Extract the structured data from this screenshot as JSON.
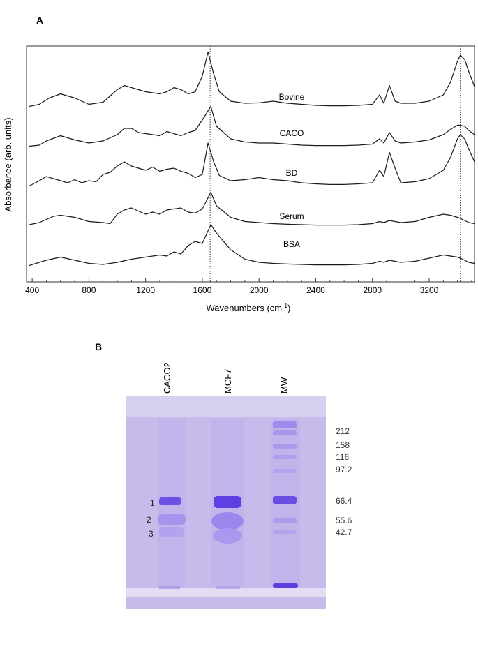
{
  "panel_a": {
    "label": "A",
    "xlabel_main": "Wavenumbers (cm",
    "xlabel_sup": "-1",
    "xlabel_close": ")",
    "ylabel": "Absorbance (arb. units)"
  },
  "panel_b": {
    "label": "B",
    "lanes": [
      "CACO2",
      "MCF7",
      "MW"
    ],
    "band_labels": [
      "1",
      "2",
      "3"
    ],
    "mw_markers": [
      "212",
      "158",
      "116",
      "97.2",
      "66.4",
      "55.6",
      "42.7"
    ]
  },
  "chart_data": [
    {
      "type": "line",
      "title": "",
      "xlabel": "Wavenumbers (cm-1)",
      "ylabel": "Absorbance (arb. units)",
      "xlim": [
        360,
        3520
      ],
      "xticks": [
        400,
        800,
        1200,
        1600,
        2000,
        2400,
        2800,
        3200
      ],
      "reference_lines_x": [
        1655,
        3420
      ],
      "grid": false,
      "series": [
        {
          "name": "Bovine",
          "offset": 4.0,
          "x": [
            380,
            450,
            520,
            600,
            700,
            800,
            900,
            1000,
            1050,
            1100,
            1200,
            1300,
            1350,
            1400,
            1450,
            1500,
            1550,
            1600,
            1640,
            1680,
            1720,
            1800,
            1900,
            2000,
            2100,
            2200,
            2300,
            2400,
            2500,
            2600,
            2700,
            2800,
            2850,
            2880,
            2920,
            2960,
            3000,
            3100,
            3200,
            3300,
            3350,
            3400,
            3420,
            3450,
            3480,
            3520
          ],
          "y": [
            0.05,
            0.15,
            0.45,
            0.65,
            0.45,
            0.15,
            0.25,
            0.85,
            1.05,
            0.95,
            0.75,
            0.65,
            0.75,
            0.95,
            0.85,
            0.65,
            0.75,
            1.5,
            2.65,
            1.6,
            0.75,
            0.3,
            0.2,
            0.22,
            0.3,
            0.2,
            0.15,
            0.1,
            0.08,
            0.08,
            0.1,
            0.15,
            0.6,
            0.2,
            1.05,
            0.3,
            0.2,
            0.2,
            0.3,
            0.6,
            1.2,
            2.2,
            2.5,
            2.3,
            1.7,
            1.0
          ]
        },
        {
          "name": "CACO",
          "offset": 3.0,
          "x": [
            380,
            450,
            500,
            600,
            700,
            800,
            900,
            1000,
            1050,
            1100,
            1150,
            1200,
            1300,
            1350,
            1400,
            1450,
            1500,
            1550,
            1600,
            1660,
            1700,
            1800,
            1900,
            2000,
            2100,
            2200,
            2300,
            2400,
            2500,
            2600,
            2700,
            2800,
            2850,
            2880,
            2920,
            2960,
            3000,
            3100,
            3200,
            3300,
            3350,
            3400,
            3420,
            3450,
            3480,
            3520
          ],
          "y": [
            0.05,
            0.1,
            0.3,
            0.55,
            0.35,
            0.2,
            0.3,
            0.6,
            0.9,
            0.9,
            0.7,
            0.65,
            0.55,
            0.75,
            0.65,
            0.55,
            0.7,
            0.8,
            1.3,
            1.95,
            1.0,
            0.4,
            0.25,
            0.2,
            0.2,
            0.15,
            0.1,
            0.08,
            0.08,
            0.08,
            0.1,
            0.15,
            0.4,
            0.2,
            0.7,
            0.3,
            0.2,
            0.25,
            0.35,
            0.6,
            0.85,
            1.05,
            1.05,
            1.0,
            0.8,
            0.6
          ]
        },
        {
          "name": "BD",
          "offset": 2.0,
          "x": [
            380,
            450,
            500,
            550,
            600,
            650,
            700,
            750,
            800,
            850,
            900,
            950,
            1000,
            1050,
            1100,
            1150,
            1200,
            1250,
            1300,
            1350,
            1400,
            1450,
            1500,
            1550,
            1600,
            1640,
            1680,
            1720,
            1800,
            1900,
            2000,
            2100,
            2200,
            2300,
            2400,
            2500,
            2600,
            2700,
            2800,
            2850,
            2880,
            2920,
            2960,
            3000,
            3100,
            3200,
            3300,
            3350,
            3400,
            3420,
            3450,
            3480,
            3520
          ],
          "y": [
            0.05,
            0.3,
            0.5,
            0.4,
            0.3,
            0.2,
            0.35,
            0.2,
            0.3,
            0.25,
            0.6,
            0.7,
            1.0,
            1.2,
            1.0,
            0.9,
            0.8,
            0.95,
            0.75,
            0.85,
            0.9,
            0.75,
            0.65,
            0.45,
            0.6,
            2.1,
            1.2,
            0.55,
            0.3,
            0.35,
            0.45,
            0.35,
            0.3,
            0.2,
            0.15,
            0.12,
            0.12,
            0.15,
            0.2,
            0.8,
            0.5,
            1.65,
            0.9,
            0.2,
            0.25,
            0.4,
            0.8,
            1.4,
            2.3,
            2.5,
            2.3,
            1.8,
            1.2
          ]
        },
        {
          "name": "Serum",
          "offset": 1.0,
          "x": [
            380,
            450,
            550,
            600,
            700,
            800,
            900,
            950,
            1000,
            1050,
            1100,
            1150,
            1200,
            1250,
            1300,
            1350,
            1400,
            1450,
            1500,
            1550,
            1600,
            1660,
            1700,
            1800,
            1900,
            2000,
            2100,
            2200,
            2300,
            2400,
            2500,
            2600,
            2700,
            2800,
            2850,
            2880,
            2920,
            2960,
            3000,
            3100,
            3200,
            3300,
            3350,
            3400,
            3420,
            3450,
            3480,
            3520
          ],
          "y": [
            0.1,
            0.2,
            0.5,
            0.55,
            0.45,
            0.25,
            0.2,
            0.15,
            0.6,
            0.8,
            0.9,
            0.75,
            0.6,
            0.7,
            0.6,
            0.8,
            0.85,
            0.9,
            0.7,
            0.65,
            0.85,
            1.65,
            1.0,
            0.45,
            0.25,
            0.2,
            0.15,
            0.12,
            0.1,
            0.08,
            0.08,
            0.08,
            0.1,
            0.15,
            0.25,
            0.2,
            0.3,
            0.25,
            0.2,
            0.25,
            0.45,
            0.6,
            0.55,
            0.45,
            0.4,
            0.3,
            0.2,
            0.15
          ]
        },
        {
          "name": "BSA",
          "offset": 0.0,
          "x": [
            380,
            450,
            500,
            600,
            700,
            800,
            900,
            1000,
            1100,
            1200,
            1300,
            1350,
            1400,
            1450,
            1500,
            1550,
            1600,
            1660,
            1700,
            1800,
            1900,
            2000,
            2100,
            2200,
            2300,
            2400,
            2500,
            2600,
            2700,
            2800,
            2850,
            2880,
            2920,
            2960,
            3000,
            3100,
            3200,
            3300,
            3350,
            3400,
            3420,
            3450,
            3480,
            3520
          ],
          "y": [
            0.05,
            0.2,
            0.3,
            0.45,
            0.3,
            0.15,
            0.1,
            0.2,
            0.35,
            0.45,
            0.55,
            0.5,
            0.7,
            0.6,
            1.0,
            1.2,
            1.1,
            2.0,
            1.6,
            0.8,
            0.35,
            0.2,
            0.15,
            0.12,
            0.1,
            0.08,
            0.08,
            0.08,
            0.1,
            0.15,
            0.25,
            0.2,
            0.3,
            0.25,
            0.2,
            0.25,
            0.4,
            0.55,
            0.5,
            0.45,
            0.4,
            0.3,
            0.2,
            0.15
          ]
        }
      ]
    }
  ],
  "colors": {
    "line": "#1a1a1a",
    "gel_background": "#c3b8e8",
    "gel_band": "#7b5fe0",
    "gel_band_strong": "#6a48e6",
    "marker_text": "#333333"
  }
}
